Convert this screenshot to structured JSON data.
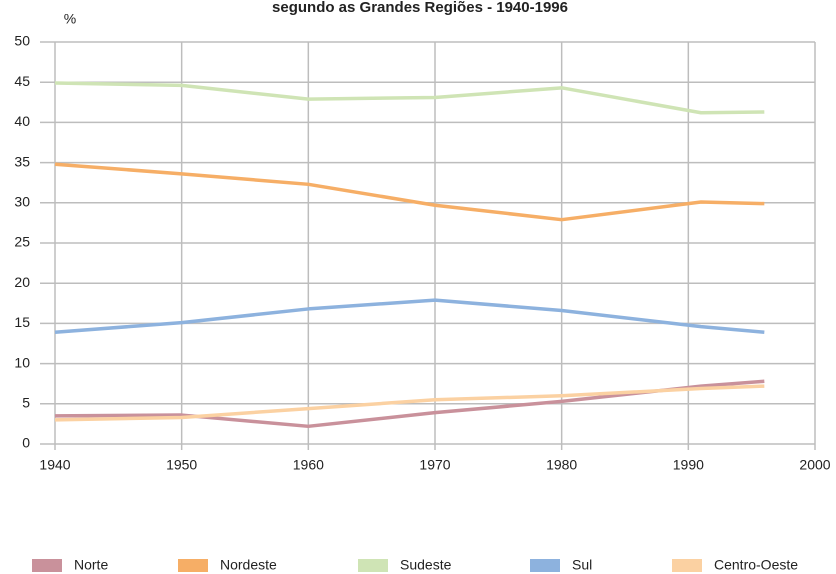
{
  "chart_data": {
    "type": "line",
    "title": "segundo as Grandes Regiões - 1940-1996",
    "y_label": "%",
    "x": [
      1940,
      1950,
      1960,
      1970,
      1980,
      1991,
      1996
    ],
    "series": [
      {
        "name": "Norte",
        "color": "#c9919b",
        "values": [
          3.5,
          3.6,
          2.2,
          3.9,
          5.3,
          7.2,
          7.8
        ]
      },
      {
        "name": "Nordeste",
        "color": "#f6ae66",
        "values": [
          34.8,
          33.6,
          32.3,
          29.7,
          27.9,
          30.1,
          29.9
        ]
      },
      {
        "name": "Sudeste",
        "color": "#cfe4b5",
        "values": [
          44.9,
          44.6,
          42.9,
          43.1,
          44.3,
          41.2,
          41.3
        ]
      },
      {
        "name": "Sul",
        "color": "#8db2de",
        "values": [
          13.9,
          15.1,
          16.8,
          17.9,
          16.6,
          14.6,
          13.9
        ]
      },
      {
        "name": "Centro-Oeste",
        "color": "#fbd1a2",
        "values": [
          3.0,
          3.3,
          4.4,
          5.5,
          6.0,
          6.9,
          7.2
        ]
      }
    ],
    "xlim": [
      1940,
      2000
    ],
    "xticks": [
      1940,
      1950,
      1960,
      1970,
      1980,
      1990,
      2000
    ],
    "ylim": [
      0,
      50
    ],
    "yticks": [
      0,
      5,
      10,
      15,
      20,
      25,
      30,
      35,
      40,
      45,
      50
    ],
    "grid": true,
    "legend": "bottom"
  }
}
